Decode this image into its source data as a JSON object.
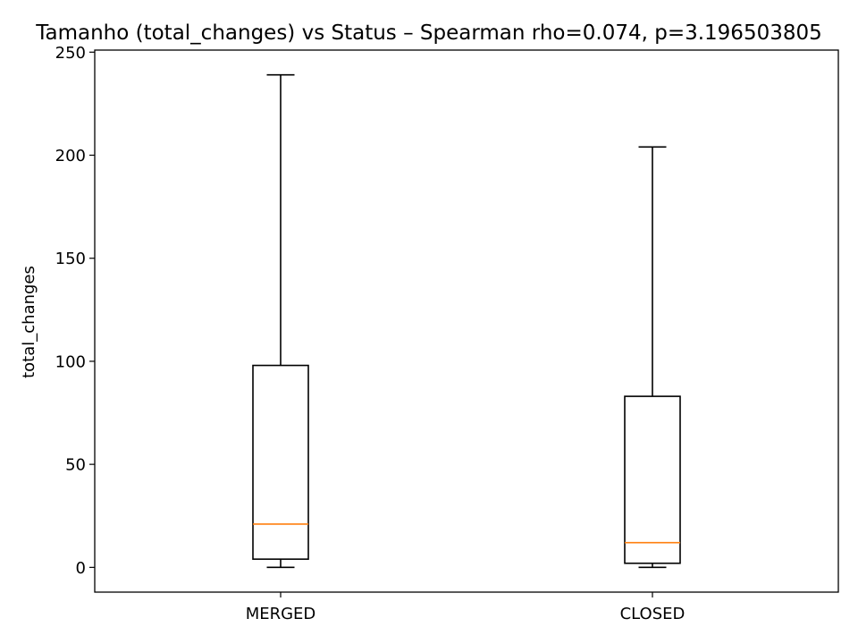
{
  "chart_data": {
    "type": "box",
    "title": "Tamanho (total_changes) vs Status – Spearman rho=0.074, p=3.196503805",
    "xlabel": "",
    "ylabel": "total_changes",
    "ylim": [
      -12,
      251
    ],
    "yticks": [
      0,
      50,
      100,
      150,
      200,
      250
    ],
    "categories": [
      "MERGED",
      "CLOSED"
    ],
    "boxes": [
      {
        "category": "MERGED",
        "whisker_low": 0,
        "q1": 4,
        "median": 21,
        "q3": 98,
        "whisker_high": 239
      },
      {
        "category": "CLOSED",
        "whisker_low": 0,
        "q1": 2,
        "median": 12,
        "q3": 83,
        "whisker_high": 204
      }
    ],
    "grid": false,
    "colors": {
      "box": "#000000",
      "median": "#ff7f0e",
      "background": "#ffffff"
    }
  }
}
